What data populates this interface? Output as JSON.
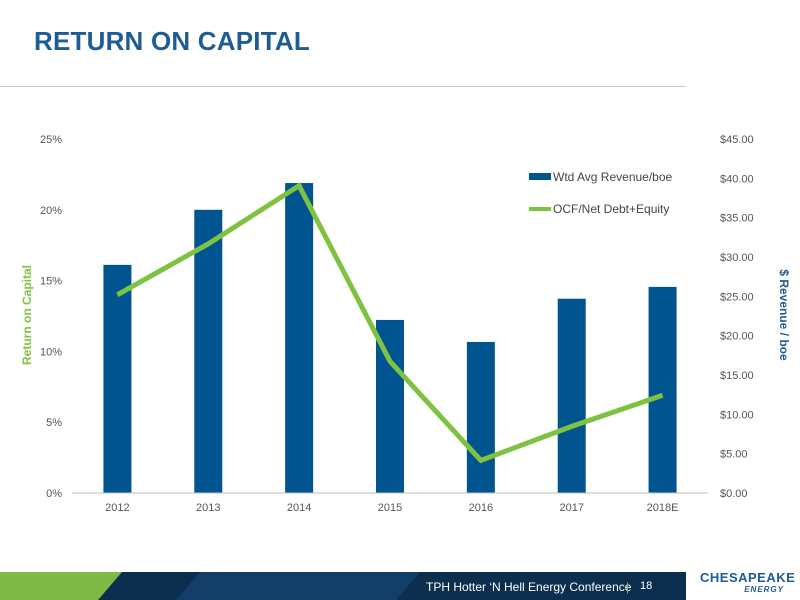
{
  "page": {
    "title": "RETURN ON CAPITAL",
    "footer_text": "TPH Hotter ‘N Hell Energy Conference",
    "footer_separator": "|",
    "page_number": "18",
    "logo_main": "CHESAPEAKE",
    "logo_sub": "ENERGY"
  },
  "colors": {
    "title": "#1f5c93",
    "bars": "#00548f",
    "line": "#7fc242",
    "footer_dark": "#0c2f4f",
    "footer_green": "#7fb844"
  },
  "chart_data": {
    "type": "bar",
    "categories": [
      "2012",
      "2013",
      "2014",
      "2015",
      "2016",
      "2017",
      "2018E"
    ],
    "series": [
      {
        "name": "Wtd Avg Revenue/boe",
        "type": "bar",
        "axis": "right",
        "values": [
          29.0,
          36.0,
          39.4,
          22.0,
          19.2,
          24.7,
          26.2
        ]
      },
      {
        "name": "OCF/Net Debt+Equity",
        "type": "line",
        "axis": "left",
        "values": [
          14.0,
          17.6,
          21.7,
          9.3,
          2.3,
          4.7,
          6.9
        ]
      }
    ],
    "left_axis": {
      "label": "Return on Capital",
      "min": 0,
      "max": 25,
      "ticks": [
        0,
        5,
        10,
        15,
        20,
        25
      ],
      "tick_labels": [
        "0%",
        "5%",
        "10%",
        "15%",
        "20%",
        "25%"
      ]
    },
    "right_axis": {
      "label": "$ Revenue / boe",
      "min": 0,
      "max": 45,
      "ticks": [
        0,
        5,
        10,
        15,
        20,
        25,
        30,
        35,
        40,
        45
      ],
      "tick_labels": [
        "$0.00",
        "$5.00",
        "$10.00",
        "$15.00",
        "$20.00",
        "$25.00",
        "$30.00",
        "$35.00",
        "$40.00",
        "$45.00"
      ]
    },
    "legend_position": "top-right",
    "grid": false
  }
}
